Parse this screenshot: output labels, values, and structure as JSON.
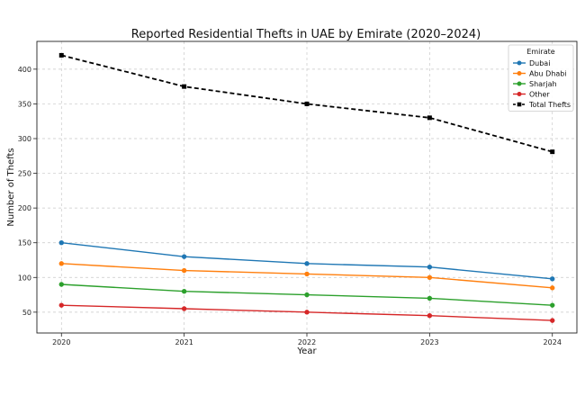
{
  "chart_data": {
    "type": "line",
    "title": "Reported Residential Thefts in UAE by Emirate (2020–2024)",
    "xlabel": "Year",
    "ylabel": "Number of Thefts",
    "x": [
      2020,
      2021,
      2022,
      2023,
      2024
    ],
    "x_tick_labels": [
      "2020",
      "2021",
      "2022",
      "2023",
      "2024"
    ],
    "y_ticks": [
      50,
      100,
      150,
      200,
      250,
      300,
      350,
      400
    ],
    "y_tick_labels": [
      "50",
      "100",
      "150",
      "200",
      "250",
      "300",
      "350",
      "400"
    ],
    "xlim": [
      2019.8,
      2024.2
    ],
    "ylim": [
      20,
      440
    ],
    "grid": true,
    "legend": {
      "title": "Emirate",
      "placement": "top-right"
    },
    "series": [
      {
        "name": "Dubai",
        "values": [
          150,
          130,
          120,
          115,
          98
        ],
        "color": "#1f77b4",
        "marker": "circle",
        "linestyle": "solid"
      },
      {
        "name": "Abu Dhabi",
        "values": [
          120,
          110,
          105,
          100,
          85
        ],
        "color": "#ff7f0e",
        "marker": "circle",
        "linestyle": "solid"
      },
      {
        "name": "Sharjah",
        "values": [
          90,
          80,
          75,
          70,
          60
        ],
        "color": "#2ca02c",
        "marker": "circle",
        "linestyle": "solid"
      },
      {
        "name": "Other",
        "values": [
          60,
          55,
          50,
          45,
          38
        ],
        "color": "#d62728",
        "marker": "circle",
        "linestyle": "solid"
      },
      {
        "name": "Total Thefts",
        "values": [
          420,
          375,
          350,
          330,
          281
        ],
        "color": "#000000",
        "marker": "square",
        "linestyle": "dashed"
      }
    ]
  }
}
